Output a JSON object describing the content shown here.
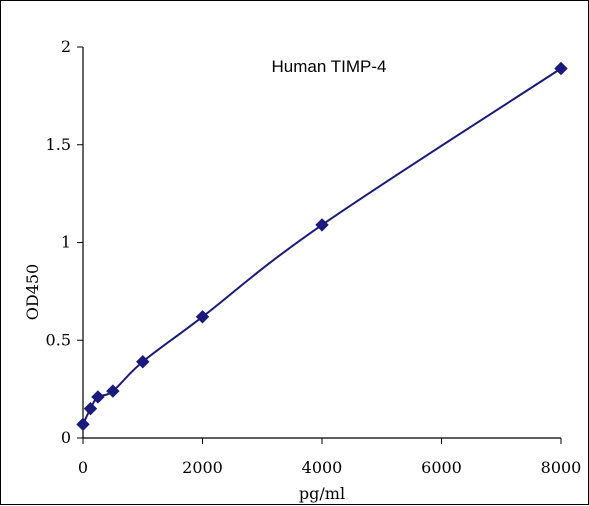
{
  "chart_data": {
    "type": "scatter",
    "title": "Human   TIMP-4",
    "xlabel": "pg/ml",
    "ylabel": "OD450",
    "xlim": [
      0,
      8000
    ],
    "ylim": [
      0,
      2
    ],
    "xticks": [
      "0",
      "2000",
      "4000",
      "6000",
      "8000"
    ],
    "yticks": [
      "0",
      "0.5",
      "1",
      "1.5",
      "2"
    ],
    "x": [
      0,
      125,
      250,
      500,
      1000,
      2000,
      4000,
      8000
    ],
    "y": [
      0.07,
      0.15,
      0.21,
      0.24,
      0.39,
      0.62,
      1.09,
      1.89
    ],
    "marker_color": "#1a1a7a",
    "line_color": "#1a1a7a",
    "grid": false,
    "legend": "none"
  }
}
